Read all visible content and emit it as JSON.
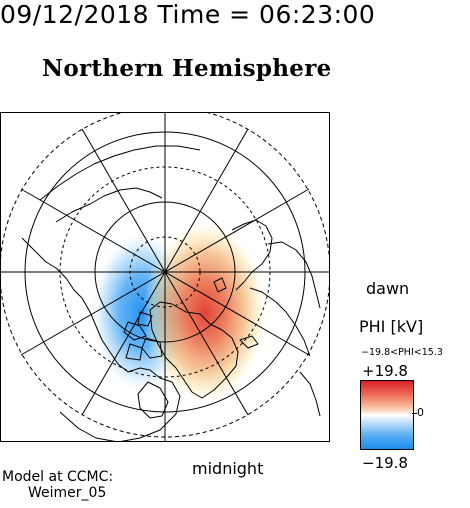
{
  "header": {
    "datetime": "09/12/2018 Time = 06:23:00",
    "hemisphere": "Northern Hemisphere"
  },
  "map": {
    "orientation": {
      "right_label": "dawn",
      "bottom_label": "midnight"
    },
    "colors": {
      "negative": "#1a8cf0",
      "positive": "#e03a2a",
      "zero": "#ffffff"
    }
  },
  "colorbar": {
    "title": "PHI [kV]",
    "range_text": "−19.8<PHI<15.3",
    "max_label": "+19.8",
    "min_label": "−19.8",
    "zero_label": "0"
  },
  "footer": {
    "model_line1": "Model at CCMC:",
    "model_line2": "Weimer_05"
  }
}
